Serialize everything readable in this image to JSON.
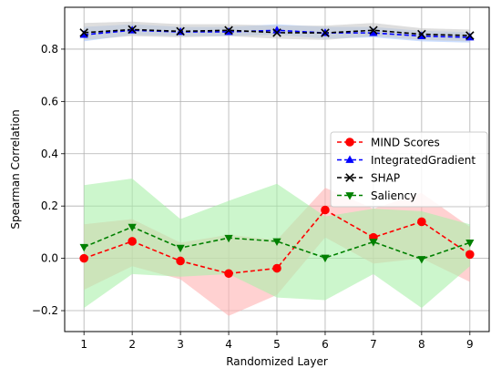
{
  "chart_data": {
    "type": "line",
    "title": "",
    "xlabel": "Randomized Layer",
    "ylabel": "Spearman Correlation",
    "x": [
      1,
      2,
      3,
      4,
      5,
      6,
      7,
      8,
      9
    ],
    "xticks": [
      "1",
      "2",
      "3",
      "4",
      "5",
      "6",
      "7",
      "8",
      "9"
    ],
    "yticks": [
      -0.2,
      0.0,
      0.2,
      0.4,
      0.6,
      0.8
    ],
    "ytick_labels": [
      "−0.2",
      "0.0",
      "0.2",
      "0.4",
      "0.6",
      "0.8"
    ],
    "xlim": [
      0.6,
      9.4
    ],
    "ylim": [
      -0.28,
      0.96
    ],
    "grid": true,
    "legend_position": "center-right",
    "series": [
      {
        "name": "MIND Scores",
        "color": "#ff0000",
        "band_color": "#ffb3b3",
        "marker": "circle",
        "values": [
          0.0,
          0.065,
          -0.01,
          -0.058,
          -0.038,
          0.185,
          0.08,
          0.14,
          0.015
        ],
        "lower": [
          -0.12,
          -0.03,
          -0.08,
          -0.22,
          -0.14,
          0.08,
          -0.02,
          0.0,
          -0.09
        ],
        "upper": [
          0.13,
          0.15,
          0.06,
          0.09,
          0.07,
          0.27,
          0.19,
          0.25,
          0.12
        ]
      },
      {
        "name": "IntegratedGradient",
        "color": "#0000ff",
        "band_color": "#a8c8ff",
        "marker": "triangle-up",
        "values": [
          0.855,
          0.872,
          0.866,
          0.866,
          0.872,
          0.862,
          0.862,
          0.85,
          0.845
        ],
        "lower": [
          0.83,
          0.855,
          0.85,
          0.85,
          0.855,
          0.84,
          0.845,
          0.83,
          0.825
        ],
        "upper": [
          0.885,
          0.895,
          0.885,
          0.885,
          0.895,
          0.885,
          0.885,
          0.87,
          0.865
        ]
      },
      {
        "name": "SHAP",
        "color": "#000000",
        "band_color": "#c8c8c8",
        "marker": "x",
        "values": [
          0.863,
          0.875,
          0.868,
          0.872,
          0.863,
          0.862,
          0.872,
          0.857,
          0.852
        ],
        "lower": [
          0.835,
          0.85,
          0.845,
          0.85,
          0.84,
          0.835,
          0.85,
          0.835,
          0.83
        ],
        "upper": [
          0.9,
          0.905,
          0.895,
          0.895,
          0.89,
          0.89,
          0.9,
          0.88,
          0.875
        ]
      },
      {
        "name": "Saliency",
        "color": "#008000",
        "band_color": "#aaf0aa",
        "marker": "triangle-down",
        "values": [
          0.043,
          0.12,
          0.04,
          0.078,
          0.065,
          0.002,
          0.063,
          -0.003,
          0.06
        ],
        "lower": [
          -0.19,
          -0.06,
          -0.07,
          -0.06,
          -0.15,
          -0.16,
          -0.06,
          -0.19,
          -0.03
        ],
        "upper": [
          0.28,
          0.305,
          0.15,
          0.22,
          0.285,
          0.16,
          0.19,
          0.18,
          0.13
        ]
      }
    ]
  }
}
